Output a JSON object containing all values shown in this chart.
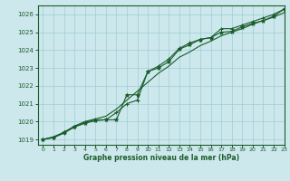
{
  "title": "Graphe pression niveau de la mer (hPa)",
  "bg_color": "#cce8ec",
  "grid_color": "#9ecdd4",
  "line_color": "#1a5c2a",
  "xlim": [
    -0.5,
    23
  ],
  "ylim": [
    1018.7,
    1026.5
  ],
  "yticks": [
    1019,
    1020,
    1021,
    1022,
    1023,
    1024,
    1025,
    1026
  ],
  "xticks": [
    0,
    1,
    2,
    3,
    4,
    5,
    6,
    7,
    8,
    9,
    10,
    11,
    12,
    13,
    14,
    15,
    16,
    17,
    18,
    19,
    20,
    21,
    22,
    23
  ],
  "series_smooth": [
    1019.0,
    1019.15,
    1019.4,
    1019.75,
    1020.0,
    1020.15,
    1020.3,
    1020.7,
    1021.2,
    1021.7,
    1022.2,
    1022.7,
    1023.1,
    1023.6,
    1023.9,
    1024.25,
    1024.5,
    1024.8,
    1025.0,
    1025.2,
    1025.45,
    1025.65,
    1025.85,
    1026.1
  ],
  "series_star": [
    1019.0,
    1019.1,
    1019.4,
    1019.7,
    1019.9,
    1020.05,
    1020.1,
    1020.1,
    1021.5,
    1021.5,
    1022.8,
    1023.0,
    1023.35,
    1024.05,
    1024.3,
    1024.6,
    1024.7,
    1025.0,
    1025.05,
    1025.3,
    1025.5,
    1025.65,
    1025.9,
    1026.3
  ],
  "series_plus": [
    1019.0,
    1019.1,
    1019.35,
    1019.7,
    1019.95,
    1020.1,
    1020.1,
    1020.5,
    1021.0,
    1021.2,
    1022.8,
    1023.1,
    1023.5,
    1024.1,
    1024.4,
    1024.6,
    1024.7,
    1025.2,
    1025.2,
    1025.4,
    1025.6,
    1025.8,
    1026.0,
    1026.3
  ]
}
